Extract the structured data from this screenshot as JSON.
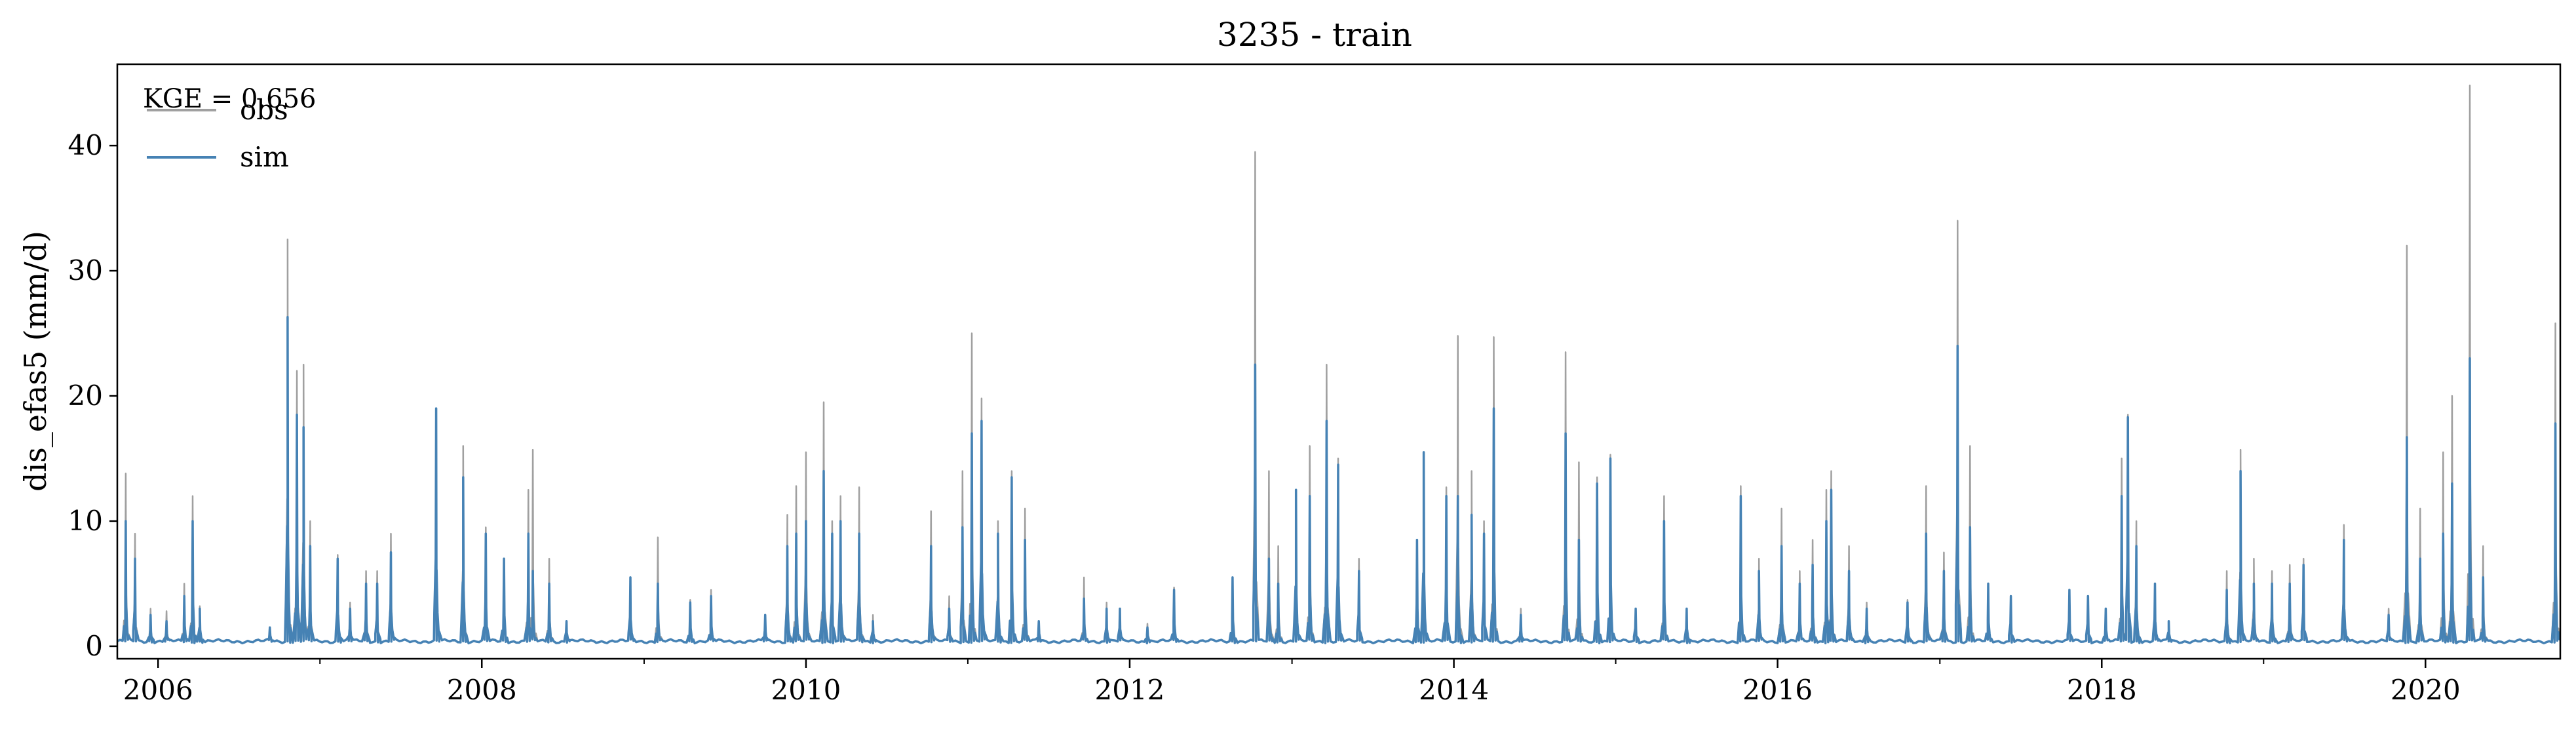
{
  "chart_data": {
    "type": "line",
    "title": "3235 - train",
    "xlabel": "",
    "ylabel": "dis_efas5 (mm/d)",
    "x_range": [
      "2005-10-01",
      "2020-10-31"
    ],
    "ylim": [
      -1,
      46.5
    ],
    "x_ticks": [
      "2006",
      "2008",
      "2010",
      "2012",
      "2014",
      "2016",
      "2018",
      "2020"
    ],
    "y_ticks": [
      0,
      10,
      20,
      30,
      40
    ],
    "grid": false,
    "legend": "top-left",
    "annotation": "KGE = 0.656",
    "baseflow": 0.4,
    "series": [
      {
        "name": "obs",
        "color": "#a0a0a0",
        "peaks": [
          [
            "2005-10-20",
            13.8
          ],
          [
            "2005-11-10",
            9.0
          ],
          [
            "2005-12-15",
            3.0
          ],
          [
            "2006-01-20",
            2.8
          ],
          [
            "2006-03-01",
            5.0
          ],
          [
            "2006-03-20",
            12.0
          ],
          [
            "2006-04-05",
            3.2
          ],
          [
            "2006-09-10",
            1.5
          ],
          [
            "2006-10-20",
            32.5
          ],
          [
            "2006-11-10",
            22.0
          ],
          [
            "2006-11-25",
            22.5
          ],
          [
            "2006-12-10",
            10.0
          ],
          [
            "2007-02-10",
            7.3
          ],
          [
            "2007-03-10",
            3.5
          ],
          [
            "2007-04-15",
            6.0
          ],
          [
            "2007-05-10",
            6.0
          ],
          [
            "2007-06-10",
            9.0
          ],
          [
            "2007-09-20",
            19.0
          ],
          [
            "2007-11-20",
            16.0
          ],
          [
            "2008-01-10",
            9.5
          ],
          [
            "2008-02-20",
            7.0
          ],
          [
            "2008-04-15",
            12.5
          ],
          [
            "2008-04-25",
            15.7
          ],
          [
            "2008-06-01",
            7.0
          ],
          [
            "2008-07-10",
            2.0
          ],
          [
            "2008-12-01",
            5.5
          ],
          [
            "2009-02-01",
            8.7
          ],
          [
            "2009-04-15",
            3.7
          ],
          [
            "2009-06-01",
            4.5
          ],
          [
            "2009-10-01",
            2.5
          ],
          [
            "2009-11-20",
            10.5
          ],
          [
            "2009-12-10",
            12.8
          ],
          [
            "2010-01-01",
            15.5
          ],
          [
            "2010-02-10",
            19.5
          ],
          [
            "2010-03-01",
            10.0
          ],
          [
            "2010-03-20",
            12.0
          ],
          [
            "2010-05-01",
            12.7
          ],
          [
            "2010-06-01",
            2.5
          ],
          [
            "2010-10-10",
            10.8
          ],
          [
            "2010-11-20",
            4.0
          ],
          [
            "2010-12-20",
            14.0
          ],
          [
            "2011-01-10",
            25.0
          ],
          [
            "2011-02-01",
            19.8
          ],
          [
            "2011-03-10",
            10.0
          ],
          [
            "2011-04-10",
            14.0
          ],
          [
            "2011-05-10",
            11.0
          ],
          [
            "2011-06-10",
            2.0
          ],
          [
            "2011-09-20",
            5.5
          ],
          [
            "2011-11-10",
            3.5
          ],
          [
            "2011-12-10",
            3.0
          ],
          [
            "2012-02-10",
            1.8
          ],
          [
            "2012-04-10",
            4.7
          ],
          [
            "2012-08-20",
            5.5
          ],
          [
            "2012-10-10",
            39.5
          ],
          [
            "2012-11-10",
            14.0
          ],
          [
            "2012-12-01",
            8.0
          ],
          [
            "2013-01-10",
            12.0
          ],
          [
            "2013-02-10",
            16.0
          ],
          [
            "2013-03-20",
            22.5
          ],
          [
            "2013-04-15",
            15.0
          ],
          [
            "2013-06-01",
            7.0
          ],
          [
            "2013-10-10",
            8.5
          ],
          [
            "2013-10-25",
            15.5
          ],
          [
            "2013-12-15",
            12.7
          ],
          [
            "2014-01-10",
            24.8
          ],
          [
            "2014-02-10",
            14.0
          ],
          [
            "2014-03-10",
            10.0
          ],
          [
            "2014-04-01",
            24.7
          ],
          [
            "2014-06-01",
            3.0
          ],
          [
            "2014-09-10",
            23.5
          ],
          [
            "2014-10-10",
            14.7
          ],
          [
            "2014-11-20",
            13.5
          ],
          [
            "2014-12-20",
            15.3
          ],
          [
            "2015-02-15",
            3.0
          ],
          [
            "2015-04-20",
            12.0
          ],
          [
            "2015-06-10",
            3.0
          ],
          [
            "2015-10-10",
            12.8
          ],
          [
            "2015-11-20",
            7.0
          ],
          [
            "2016-01-10",
            11.0
          ],
          [
            "2016-02-20",
            6.0
          ],
          [
            "2016-03-20",
            8.5
          ],
          [
            "2016-04-20",
            12.5
          ],
          [
            "2016-05-01",
            14.0
          ],
          [
            "2016-06-10",
            8.0
          ],
          [
            "2016-07-20",
            3.5
          ],
          [
            "2016-10-20",
            3.7
          ],
          [
            "2016-12-01",
            12.8
          ],
          [
            "2017-01-10",
            7.5
          ],
          [
            "2017-02-10",
            34.0
          ],
          [
            "2017-03-10",
            16.0
          ],
          [
            "2017-04-20",
            5.0
          ],
          [
            "2017-06-10",
            4.0
          ],
          [
            "2017-10-20",
            4.5
          ],
          [
            "2017-12-01",
            4.0
          ],
          [
            "2018-01-10",
            3.0
          ],
          [
            "2018-02-15",
            15.0
          ],
          [
            "2018-03-01",
            18.5
          ],
          [
            "2018-03-20",
            10.0
          ],
          [
            "2018-05-01",
            4.0
          ],
          [
            "2018-06-01",
            2.0
          ],
          [
            "2018-10-10",
            6.0
          ],
          [
            "2018-11-10",
            15.7
          ],
          [
            "2018-12-10",
            7.0
          ],
          [
            "2019-01-20",
            6.0
          ],
          [
            "2019-03-01",
            6.5
          ],
          [
            "2019-04-01",
            7.0
          ],
          [
            "2019-07-01",
            9.7
          ],
          [
            "2019-10-10",
            3.0
          ],
          [
            "2019-11-20",
            32.0
          ],
          [
            "2019-12-20",
            11.0
          ],
          [
            "2020-02-10",
            15.5
          ],
          [
            "2020-03-01",
            20.0
          ],
          [
            "2020-04-10",
            44.8
          ],
          [
            "2020-05-10",
            8.0
          ],
          [
            "2020-10-20",
            25.8
          ]
        ]
      },
      {
        "name": "sim",
        "color": "#4682b4",
        "peaks": [
          [
            "2005-10-20",
            10.0
          ],
          [
            "2005-11-10",
            7.0
          ],
          [
            "2005-12-15",
            2.5
          ],
          [
            "2006-01-20",
            2.0
          ],
          [
            "2006-03-01",
            4.0
          ],
          [
            "2006-03-20",
            10.0
          ],
          [
            "2006-04-05",
            3.0
          ],
          [
            "2006-09-10",
            1.5
          ],
          [
            "2006-10-20",
            26.3
          ],
          [
            "2006-11-10",
            18.5
          ],
          [
            "2006-11-25",
            17.5
          ],
          [
            "2006-12-10",
            8.0
          ],
          [
            "2007-02-10",
            7.0
          ],
          [
            "2007-03-10",
            3.0
          ],
          [
            "2007-04-15",
            5.0
          ],
          [
            "2007-05-10",
            5.0
          ],
          [
            "2007-06-10",
            7.5
          ],
          [
            "2007-09-20",
            19.0
          ],
          [
            "2007-11-20",
            13.5
          ],
          [
            "2008-01-10",
            9.0
          ],
          [
            "2008-02-20",
            7.0
          ],
          [
            "2008-04-15",
            9.0
          ],
          [
            "2008-04-25",
            6.0
          ],
          [
            "2008-06-01",
            5.0
          ],
          [
            "2008-07-10",
            2.0
          ],
          [
            "2008-12-01",
            5.5
          ],
          [
            "2009-02-01",
            5.0
          ],
          [
            "2009-04-15",
            3.5
          ],
          [
            "2009-06-01",
            4.0
          ],
          [
            "2009-10-01",
            2.5
          ],
          [
            "2009-11-20",
            8.0
          ],
          [
            "2009-12-10",
            9.0
          ],
          [
            "2010-01-01",
            10.0
          ],
          [
            "2010-02-10",
            14.0
          ],
          [
            "2010-03-01",
            9.0
          ],
          [
            "2010-03-20",
            10.0
          ],
          [
            "2010-05-01",
            9.0
          ],
          [
            "2010-06-01",
            2.0
          ],
          [
            "2010-10-10",
            8.0
          ],
          [
            "2010-11-20",
            3.0
          ],
          [
            "2010-12-20",
            9.5
          ],
          [
            "2011-01-10",
            17.0
          ],
          [
            "2011-02-01",
            18.0
          ],
          [
            "2011-03-10",
            9.0
          ],
          [
            "2011-04-10",
            13.5
          ],
          [
            "2011-05-10",
            8.5
          ],
          [
            "2011-06-10",
            2.0
          ],
          [
            "2011-09-20",
            3.8
          ],
          [
            "2011-11-10",
            3.0
          ],
          [
            "2011-12-10",
            3.0
          ],
          [
            "2012-02-10",
            1.5
          ],
          [
            "2012-04-10",
            4.5
          ],
          [
            "2012-08-20",
            5.5
          ],
          [
            "2012-10-10",
            22.5
          ],
          [
            "2012-11-10",
            7.0
          ],
          [
            "2012-12-01",
            5.0
          ],
          [
            "2013-01-10",
            12.5
          ],
          [
            "2013-02-10",
            12.0
          ],
          [
            "2013-03-20",
            18.0
          ],
          [
            "2013-04-15",
            14.5
          ],
          [
            "2013-06-01",
            6.0
          ],
          [
            "2013-10-10",
            8.5
          ],
          [
            "2013-10-25",
            15.5
          ],
          [
            "2013-12-15",
            12.0
          ],
          [
            "2014-01-10",
            12.0
          ],
          [
            "2014-02-10",
            10.5
          ],
          [
            "2014-03-10",
            9.0
          ],
          [
            "2014-04-01",
            19.0
          ],
          [
            "2014-06-01",
            2.5
          ],
          [
            "2014-09-10",
            17.0
          ],
          [
            "2014-10-10",
            8.5
          ],
          [
            "2014-11-20",
            13.0
          ],
          [
            "2014-12-20",
            15.0
          ],
          [
            "2015-02-15",
            3.0
          ],
          [
            "2015-04-20",
            10.0
          ],
          [
            "2015-06-10",
            3.0
          ],
          [
            "2015-10-10",
            12.0
          ],
          [
            "2015-11-20",
            6.0
          ],
          [
            "2016-01-10",
            8.0
          ],
          [
            "2016-02-20",
            5.0
          ],
          [
            "2016-03-20",
            6.5
          ],
          [
            "2016-04-20",
            10.0
          ],
          [
            "2016-05-01",
            12.5
          ],
          [
            "2016-06-10",
            6.0
          ],
          [
            "2016-07-20",
            3.0
          ],
          [
            "2016-10-20",
            3.5
          ],
          [
            "2016-12-01",
            9.0
          ],
          [
            "2017-01-10",
            6.0
          ],
          [
            "2017-02-10",
            24.0
          ],
          [
            "2017-03-10",
            9.5
          ],
          [
            "2017-04-20",
            5.0
          ],
          [
            "2017-06-10",
            4.0
          ],
          [
            "2017-10-20",
            4.5
          ],
          [
            "2017-12-01",
            4.0
          ],
          [
            "2018-01-10",
            3.0
          ],
          [
            "2018-02-15",
            12.0
          ],
          [
            "2018-03-01",
            18.3
          ],
          [
            "2018-03-20",
            8.0
          ],
          [
            "2018-05-01",
            5.0
          ],
          [
            "2018-06-01",
            2.0
          ],
          [
            "2018-10-10",
            4.5
          ],
          [
            "2018-11-10",
            14.0
          ],
          [
            "2018-12-10",
            5.0
          ],
          [
            "2019-01-20",
            5.0
          ],
          [
            "2019-03-01",
            5.0
          ],
          [
            "2019-04-01",
            6.5
          ],
          [
            "2019-07-01",
            8.5
          ],
          [
            "2019-10-10",
            2.5
          ],
          [
            "2019-11-20",
            16.7
          ],
          [
            "2019-12-20",
            7.0
          ],
          [
            "2020-02-10",
            9.0
          ],
          [
            "2020-03-01",
            13.0
          ],
          [
            "2020-04-10",
            23.0
          ],
          [
            "2020-05-10",
            5.5
          ],
          [
            "2020-10-20",
            17.8
          ]
        ]
      }
    ]
  }
}
